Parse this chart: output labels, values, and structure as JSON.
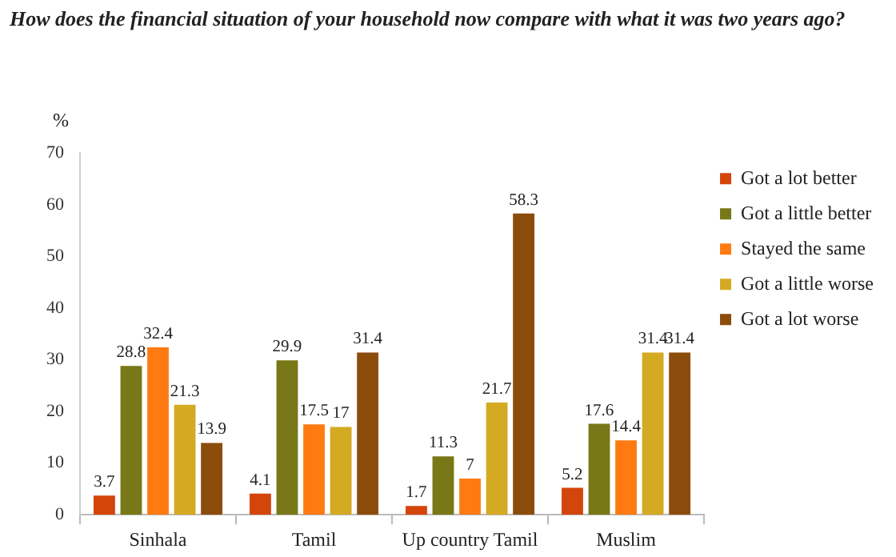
{
  "chart_data": {
    "type": "bar",
    "title": "How does the financial situation of your household now compare with what it was two years ago?",
    "ylabel": "%",
    "categories": [
      "Sinhala",
      "Tamil",
      "Up country Tamil",
      "Muslim"
    ],
    "series": [
      {
        "name": "Got a lot better",
        "color": "#d4450c",
        "values": [
          3.7,
          4.1,
          1.7,
          5.2
        ]
      },
      {
        "name": "Got a little better",
        "color": "#787818",
        "values": [
          28.8,
          29.9,
          11.3,
          17.6
        ]
      },
      {
        "name": "Stayed the same",
        "color": "#ff7b12",
        "values": [
          32.4,
          17.5,
          7,
          14.4
        ]
      },
      {
        "name": "Got a little worse",
        "color": "#d4aa22",
        "values": [
          21.3,
          17,
          21.7,
          31.4
        ]
      },
      {
        "name": "Got a lot worse",
        "color": "#8c4c0c",
        "values": [
          13.9,
          31.4,
          58.3,
          31.4
        ]
      }
    ],
    "ylim": [
      0,
      70
    ],
    "yticks": [
      0,
      10,
      20,
      30,
      40,
      50,
      60,
      70
    ],
    "data_labels": true,
    "legend": "right"
  }
}
